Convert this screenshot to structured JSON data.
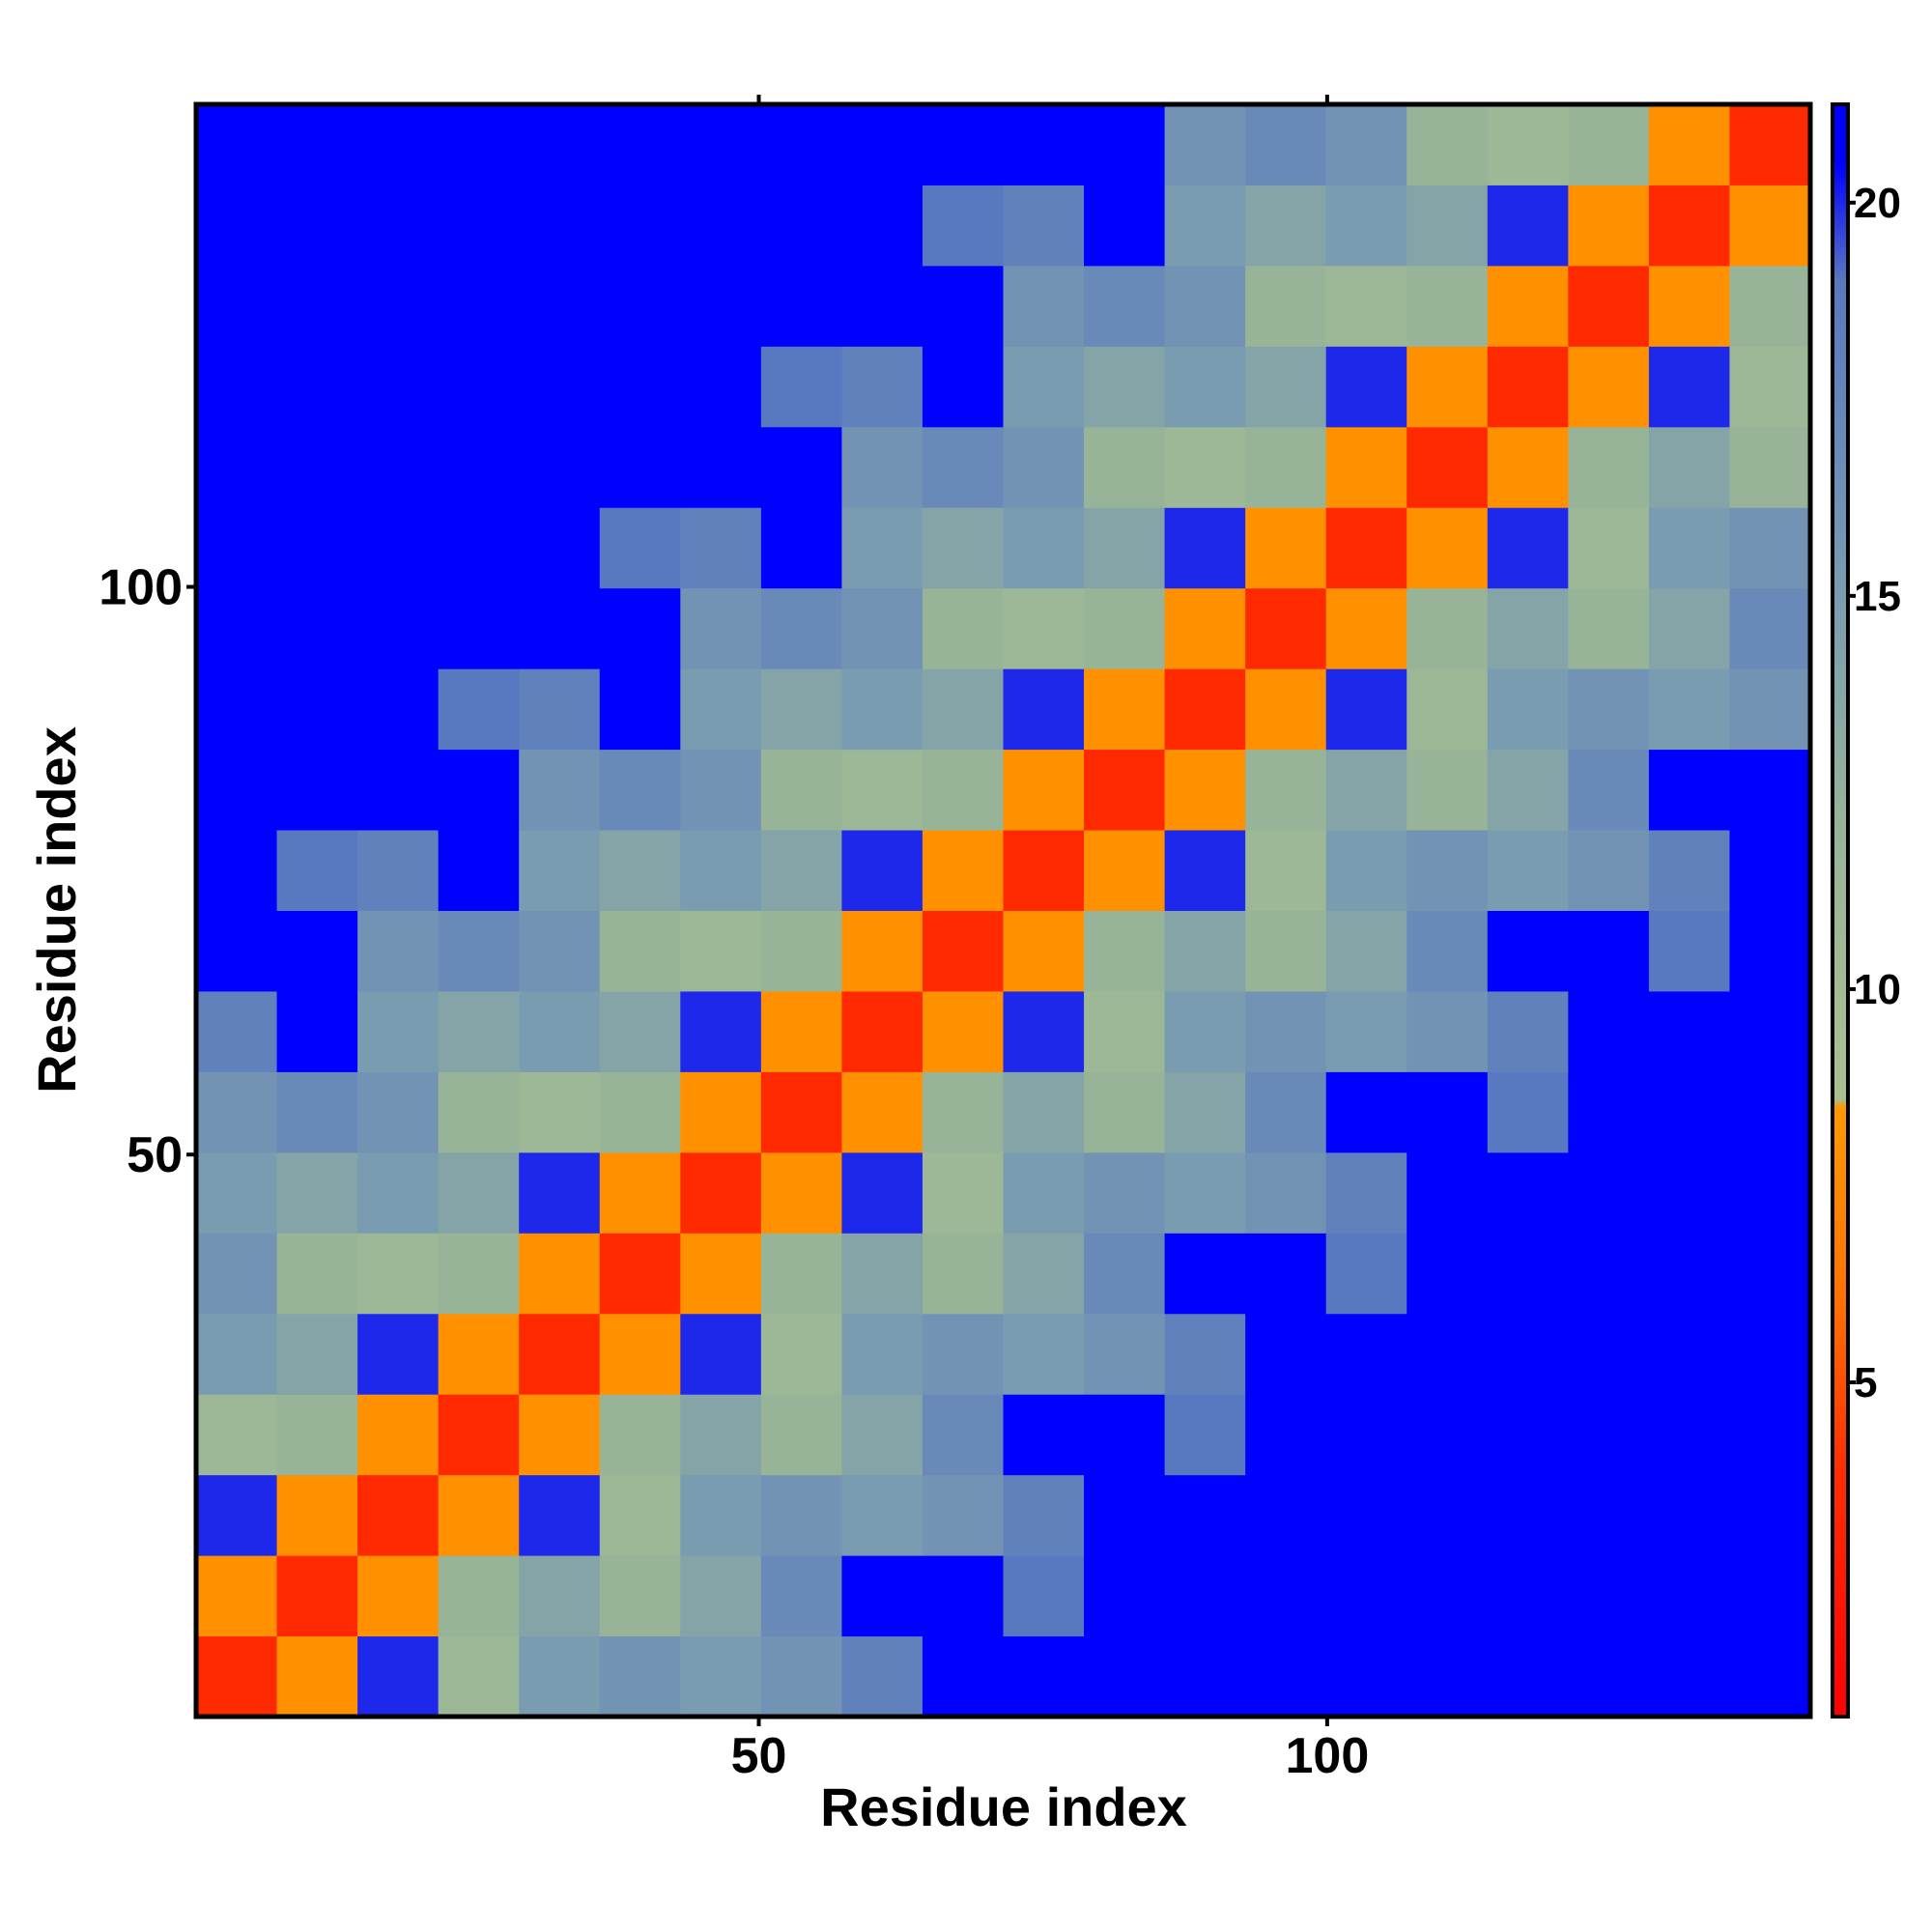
{
  "chart_data": {
    "type": "heatmap",
    "xlabel": "Residue index",
    "ylabel": "Residue index",
    "xlim": [
      0.5,
      142.5
    ],
    "ylim": [
      0.5,
      142.5
    ],
    "xticks": [
      50,
      100
    ],
    "yticks": [
      50,
      100
    ],
    "xbins": [
      0.5,
      7.6,
      14.7,
      21.8,
      28.9,
      36,
      43.1,
      50.2,
      57.3,
      64.4,
      71.5,
      78.6,
      85.7,
      92.8,
      99.9,
      107,
      114.1,
      121.2,
      128.3,
      135.4,
      142.5
    ],
    "ybins": [
      0.5,
      7.6,
      14.7,
      21.8,
      28.9,
      36,
      43.1,
      50.2,
      57.3,
      64.4,
      71.5,
      78.6,
      85.7,
      92.8,
      99.9,
      107,
      114.1,
      121.2,
      128.3,
      135.4,
      142.5
    ],
    "values": [
      [
        3.5,
        8,
        20,
        11,
        15,
        16,
        15,
        16,
        18,
        21,
        21,
        21,
        21,
        21,
        21,
        21,
        21,
        21,
        21,
        21
      ],
      [
        8,
        3.5,
        8,
        12,
        14,
        12,
        14,
        17,
        21,
        21,
        19,
        21,
        21,
        21,
        21,
        21,
        21,
        21,
        21,
        21
      ],
      [
        20,
        8,
        3.5,
        8,
        20,
        11,
        15,
        16,
        15,
        16,
        18,
        21,
        21,
        21,
        21,
        21,
        21,
        21,
        21,
        21
      ],
      [
        11,
        12,
        8,
        3.5,
        8,
        12,
        14,
        12,
        14,
        17,
        21,
        21,
        19,
        21,
        21,
        21,
        21,
        21,
        21,
        21
      ],
      [
        15,
        14,
        20,
        8,
        3.5,
        8,
        20,
        11,
        15,
        16,
        15,
        16,
        18,
        21,
        21,
        21,
        21,
        21,
        21,
        21
      ],
      [
        16,
        12,
        11,
        12,
        8,
        3.5,
        8,
        12,
        14,
        12,
        14,
        17,
        21,
        21,
        19,
        21,
        21,
        21,
        21,
        21
      ],
      [
        15,
        14,
        15,
        14,
        20,
        8,
        3.5,
        8,
        20,
        11,
        15,
        16,
        15,
        16,
        18,
        21,
        21,
        21,
        21,
        21
      ],
      [
        16,
        17,
        16,
        12,
        11,
        12,
        8,
        3.5,
        8,
        12,
        14,
        12,
        14,
        17,
        21,
        21,
        19,
        21,
        21,
        21
      ],
      [
        18,
        21,
        15,
        14,
        15,
        14,
        20,
        8,
        3.5,
        8,
        20,
        11,
        15,
        16,
        15,
        16,
        18,
        21,
        21,
        21
      ],
      [
        21,
        21,
        16,
        17,
        16,
        12,
        11,
        12,
        8,
        3.5,
        8,
        12,
        14,
        12,
        14,
        17,
        21,
        21,
        19,
        21
      ],
      [
        21,
        19,
        18,
        21,
        15,
        14,
        15,
        14,
        20,
        8,
        3.5,
        8,
        20,
        11,
        15,
        16,
        15,
        16,
        18,
        21
      ],
      [
        21,
        21,
        21,
        21,
        16,
        17,
        16,
        12,
        11,
        12,
        8,
        3.5,
        8,
        12,
        14,
        12,
        14,
        17,
        21,
        21
      ],
      [
        21,
        21,
        21,
        19,
        18,
        21,
        15,
        14,
        15,
        14,
        20,
        8,
        3.5,
        8,
        20,
        11,
        15,
        16,
        15,
        16
      ],
      [
        21,
        21,
        21,
        21,
        21,
        21,
        16,
        17,
        16,
        12,
        11,
        12,
        8,
        3.5,
        8,
        12,
        14,
        12,
        14,
        17
      ],
      [
        21,
        21,
        21,
        21,
        21,
        19,
        18,
        21,
        15,
        14,
        15,
        14,
        20,
        8,
        3.5,
        8,
        20,
        11,
        15,
        16
      ],
      [
        21,
        21,
        21,
        21,
        21,
        21,
        21,
        21,
        16,
        17,
        16,
        12,
        11,
        12,
        8,
        3.5,
        8,
        12,
        14,
        12
      ],
      [
        21,
        21,
        21,
        21,
        21,
        21,
        21,
        19,
        18,
        21,
        15,
        14,
        15,
        14,
        20,
        8,
        3.5,
        8,
        20,
        11
      ],
      [
        21,
        21,
        21,
        21,
        21,
        21,
        21,
        21,
        21,
        21,
        16,
        17,
        16,
        12,
        11,
        12,
        8,
        3.5,
        8,
        12
      ],
      [
        21,
        21,
        21,
        21,
        21,
        21,
        21,
        21,
        21,
        19,
        18,
        21,
        15,
        14,
        15,
        14,
        20,
        8,
        3.5,
        8
      ],
      [
        21,
        21,
        21,
        21,
        21,
        21,
        21,
        21,
        21,
        21,
        21,
        21,
        16,
        17,
        16,
        12,
        11,
        12,
        8,
        3.5
      ]
    ],
    "clim": [
      0.75,
      21.25
    ],
    "cticks": [
      5,
      10,
      15,
      20
    ],
    "colorscale": [
      {
        "value": 0.75,
        "color": "#ff0000"
      },
      {
        "value": 4,
        "color": "#ff3000"
      },
      {
        "value": 6,
        "color": "#ff7000"
      },
      {
        "value": 8.5,
        "color": "#ff9900"
      },
      {
        "value": 8.6,
        "color": "#a8c090"
      },
      {
        "value": 12,
        "color": "#98b498"
      },
      {
        "value": 15,
        "color": "#7a9cb0"
      },
      {
        "value": 19,
        "color": "#5878c0"
      },
      {
        "value": 20.5,
        "color": "#0000ff"
      },
      {
        "value": 21.25,
        "color": "#0000ff"
      }
    ]
  }
}
